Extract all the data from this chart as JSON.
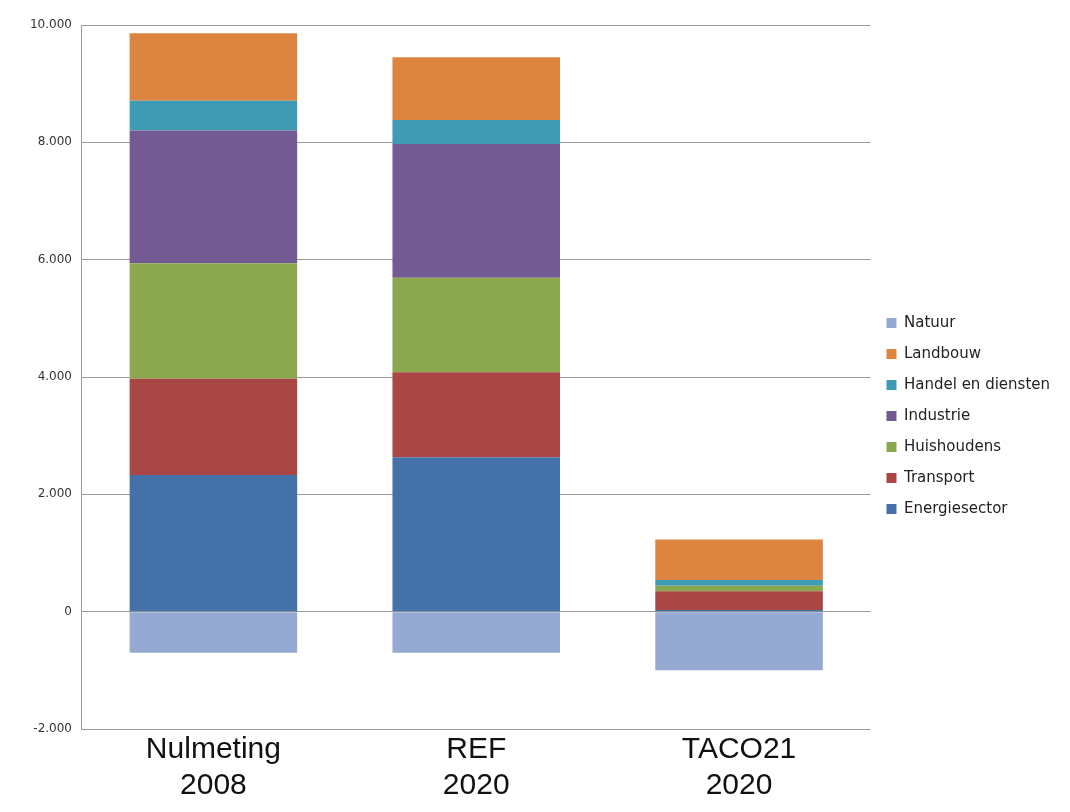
{
  "chart_data": {
    "type": "bar",
    "stacked": true,
    "categories": [
      "Nulmeting\n2008",
      "REF\n2020",
      "TACO21\n2020"
    ],
    "series": [
      {
        "name": "Energiesector",
        "color": "#4472a8",
        "values": [
          2330,
          2630,
          30
        ]
      },
      {
        "name": "Transport",
        "color": "#aa4644",
        "values": [
          1640,
          1450,
          320
        ]
      },
      {
        "name": "Huishoudens",
        "color": "#8ca84f",
        "values": [
          1970,
          1610,
          90
        ]
      },
      {
        "name": "Industrie",
        "color": "#735a93",
        "values": [
          2260,
          2280,
          0
        ]
      },
      {
        "name": "Handel en diensten",
        "color": "#3f9ab3",
        "values": [
          510,
          410,
          100
        ]
      },
      {
        "name": "Landbouw",
        "color": "#dc8540",
        "values": [
          1150,
          1070,
          690
        ]
      },
      {
        "name": "Natuur",
        "color": "#95a9d2",
        "values": [
          -700,
          -700,
          -1000
        ]
      }
    ],
    "ylim": [
      -2000,
      10000
    ],
    "yticks": [
      {
        "value": -2000,
        "label": "-2.000"
      },
      {
        "value": 0,
        "label": "0"
      },
      {
        "value": 2000,
        "label": "2.000"
      },
      {
        "value": 4000,
        "label": "4.000"
      },
      {
        "value": 6000,
        "label": "6.000"
      },
      {
        "value": 8000,
        "label": "8.000"
      },
      {
        "value": 10000,
        "label": "10.000"
      }
    ],
    "grid": "y",
    "legend": "right"
  }
}
